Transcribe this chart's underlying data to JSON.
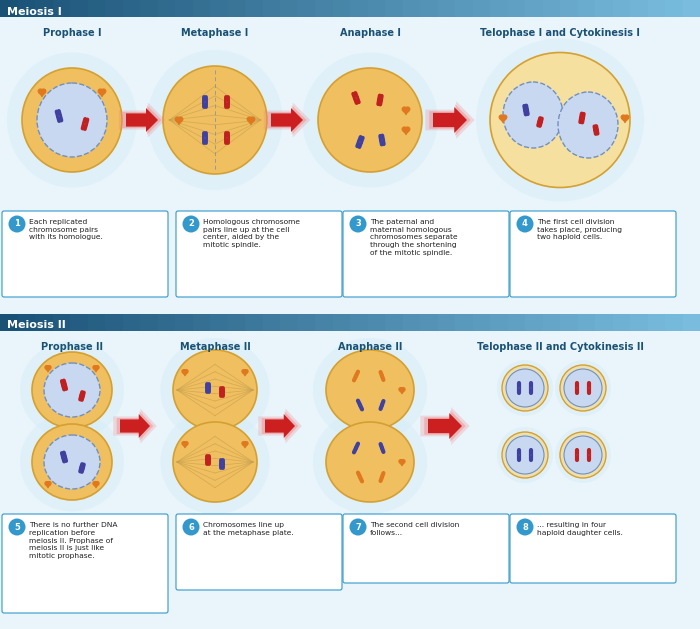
{
  "title_meiosis1": "Meiosis I",
  "title_meiosis2": "Meiosis II",
  "phase_labels_1": [
    "Prophase I",
    "Metaphase I",
    "Anaphase I",
    "Telophase I and Cytokinesis I"
  ],
  "phase_labels_2": [
    "Prophase II",
    "Metaphase II",
    "Anaphase II",
    "Telophase II and Cytokinesis II"
  ],
  "phase_label_color": "#1a5276",
  "cell_outer_color": "#f0c060",
  "cell_outer_edge": "#d4a030",
  "cell_glow_color": "#d8eef8",
  "nucleus_color": "#c8d8f0",
  "nucleus_edge": "#7090c0",
  "chr_purple": "#4040a0",
  "chr_red": "#c02020",
  "chr_orange": "#e07820",
  "arrow_color": "#cc2020",
  "arrow_glow": "#f08080",
  "bg_color": "#ffffff",
  "section_bg": "#eaf4fb",
  "box_border": "#3399cc",
  "box_bg": "#ffffff",
  "text_color": "#222222",
  "number_circle_color": "#3399cc",
  "desc1": "Each replicated\nchromosome pairs\nwith its homologue.",
  "desc2": "Homologous chromosome\npairs line up at the cell\ncenter, aided by the\nmitotic spindle.",
  "desc3": "The paternal and\nmaternal homologous\nchromosomes separate\nthrough the shortening\nof the mitotic spindle.",
  "desc4": "The first cell division\ntakes place, producing\ntwo haploid cells.",
  "desc5": "There is no further DNA\nreplication before\nmeiosis II. Prophase of\nmeiosis II is just like\nmitotic prophase.",
  "desc6": "Chromosomes line up\nat the metaphase plate.",
  "desc7": "The second cell division\nfollows...",
  "desc8": "... resulting in four\nhaploid daughter cells."
}
